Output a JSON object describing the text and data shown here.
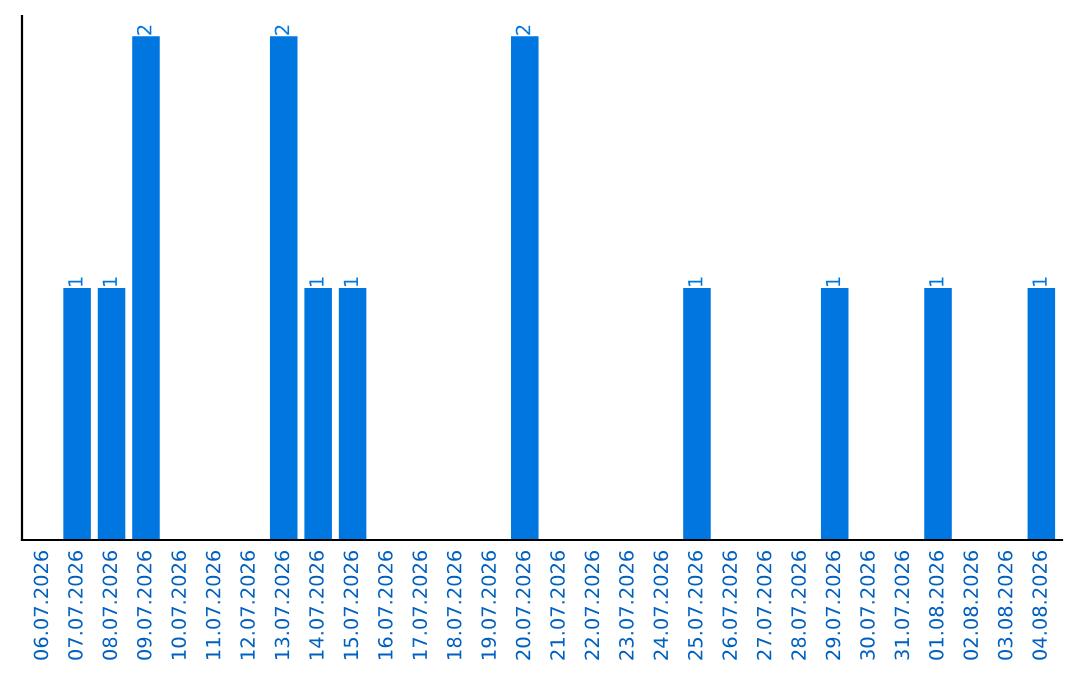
{
  "chart_data": {
    "type": "bar",
    "categories": [
      "06.07.2026",
      "07.07.2026",
      "08.07.2026",
      "09.07.2026",
      "10.07.2026",
      "11.07.2026",
      "12.07.2026",
      "13.07.2026",
      "14.07.2026",
      "15.07.2026",
      "16.07.2026",
      "17.07.2026",
      "18.07.2026",
      "19.07.2026",
      "20.07.2026",
      "21.07.2026",
      "22.07.2026",
      "23.07.2026",
      "24.07.2026",
      "25.07.2026",
      "26.07.2026",
      "27.07.2026",
      "28.07.2026",
      "29.07.2026",
      "30.07.2026",
      "31.07.2026",
      "01.08.2026",
      "02.08.2026",
      "03.08.2026",
      "04.08.2026"
    ],
    "values": [
      0,
      1,
      1,
      2,
      0,
      0,
      0,
      2,
      1,
      1,
      0,
      0,
      0,
      0,
      2,
      0,
      0,
      0,
      0,
      1,
      0,
      0,
      0,
      1,
      0,
      0,
      1,
      0,
      0,
      1
    ],
    "color": "#0077e0",
    "ylim": [
      0,
      2.08
    ],
    "tick_labels": "x",
    "value_labels": [
      null,
      "1",
      "1",
      "2",
      null,
      null,
      null,
      "2",
      "1",
      "1",
      null,
      null,
      null,
      null,
      "2",
      null,
      null,
      null,
      null,
      "1",
      null,
      null,
      null,
      "1",
      null,
      null,
      "1",
      null,
      null,
      "1"
    ],
    "grid": false,
    "legend": false
  }
}
